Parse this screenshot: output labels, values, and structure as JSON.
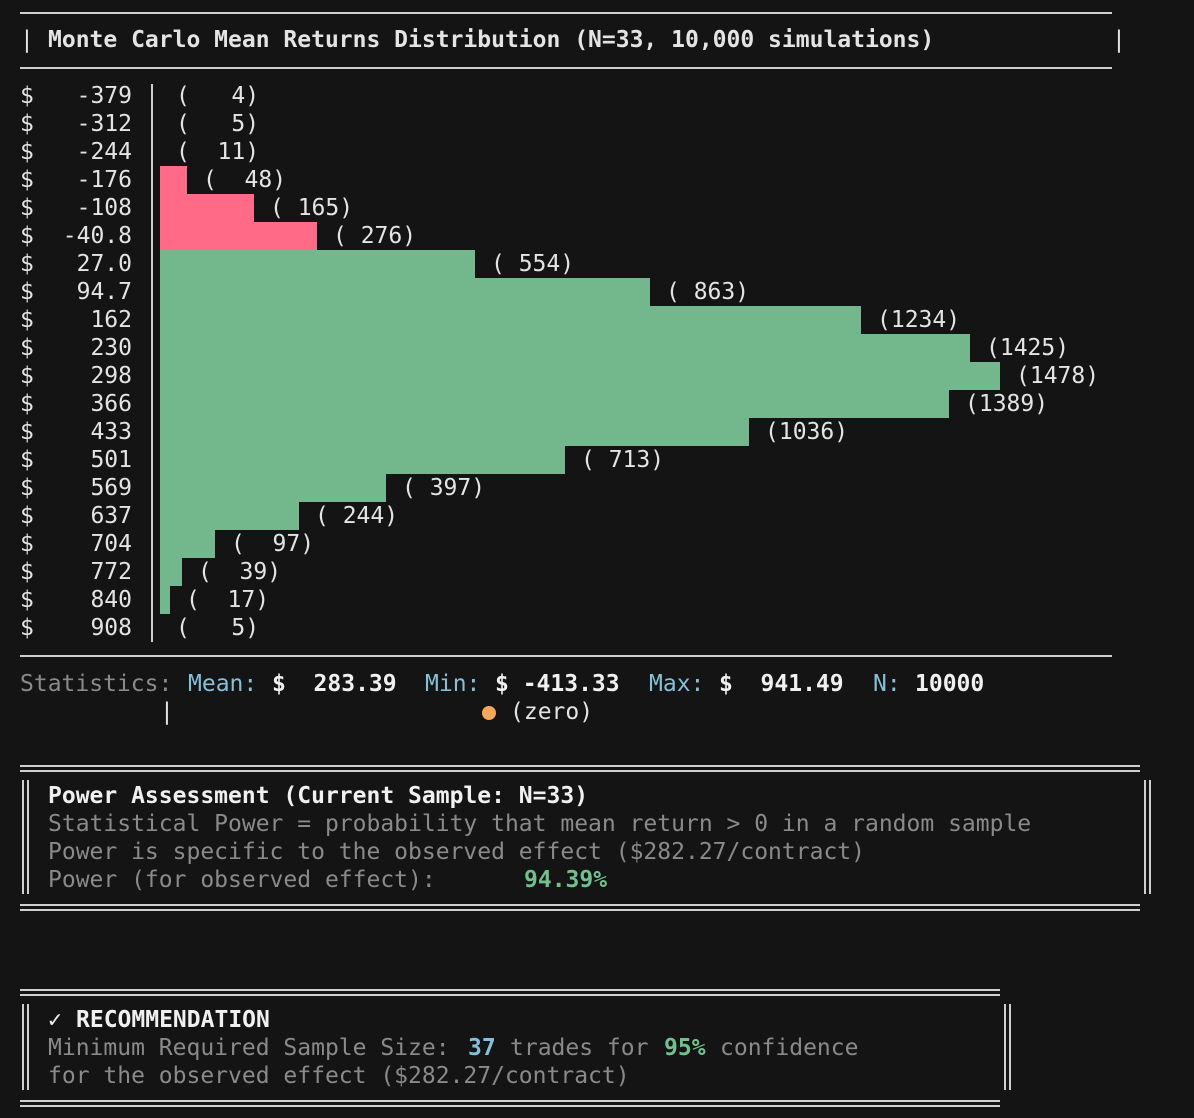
{
  "header": {
    "title": "Monte Carlo Mean Returns Distribution (N=33, 10,000 simulations)"
  },
  "chart_data": {
    "type": "bar",
    "orientation": "horizontal",
    "currency_symbol": "$",
    "categories": [
      "-379",
      "-312",
      "-244",
      "-176",
      "-108",
      "-40.8",
      "27.0",
      "94.7",
      "162",
      "230",
      "298",
      "366",
      "433",
      "501",
      "569",
      "637",
      "704",
      "772",
      "840",
      "908"
    ],
    "count_labels": [
      "(   4)",
      "(   5)",
      "(  11)",
      "(  48)",
      "( 165)",
      "( 276)",
      "( 554)",
      "( 863)",
      "(1234)",
      "(1425)",
      "(1478)",
      "(1389)",
      "(1036)",
      "( 713)",
      "( 397)",
      "( 244)",
      "(  97)",
      "(  39)",
      "(  17)",
      "(   5)"
    ],
    "values": [
      4,
      5,
      11,
      48,
      165,
      276,
      554,
      863,
      1234,
      1425,
      1478,
      1389,
      1036,
      713,
      397,
      244,
      97,
      39,
      17,
      5
    ],
    "negative_color": "#ff6b86",
    "positive_color": "#72b88c"
  },
  "statistics": {
    "label": "Statistics:",
    "mean_label": "Mean:",
    "mean_value": "$  283.39",
    "min_label": "Min:",
    "min_value": "$ -413.33",
    "max_label": "Max:",
    "max_value": "$  941.49",
    "n_label": "N:",
    "n_value": "10000",
    "zero_marker": "|",
    "mean_marker_label": "(zero)",
    "mean_marker_color": "#f4a95a"
  },
  "power": {
    "title": "Power Assessment (Current Sample: N=33)",
    "line1": "Statistical Power = probability that mean return > 0 in a random sample",
    "line2": "Power is specific to the observed effect ($282.27/contract)",
    "line3_label": "Power (for observed effect):",
    "line3_value": "94.39%"
  },
  "recommendation": {
    "check": "✓",
    "title": "RECOMMENDATION",
    "line1_prefix": "Minimum Required Sample Size:",
    "trades": "37",
    "line1_mid": "trades for",
    "confidence": "95%",
    "line1_suffix": "confidence",
    "line2": "for the observed effect ($282.27/contract)"
  }
}
